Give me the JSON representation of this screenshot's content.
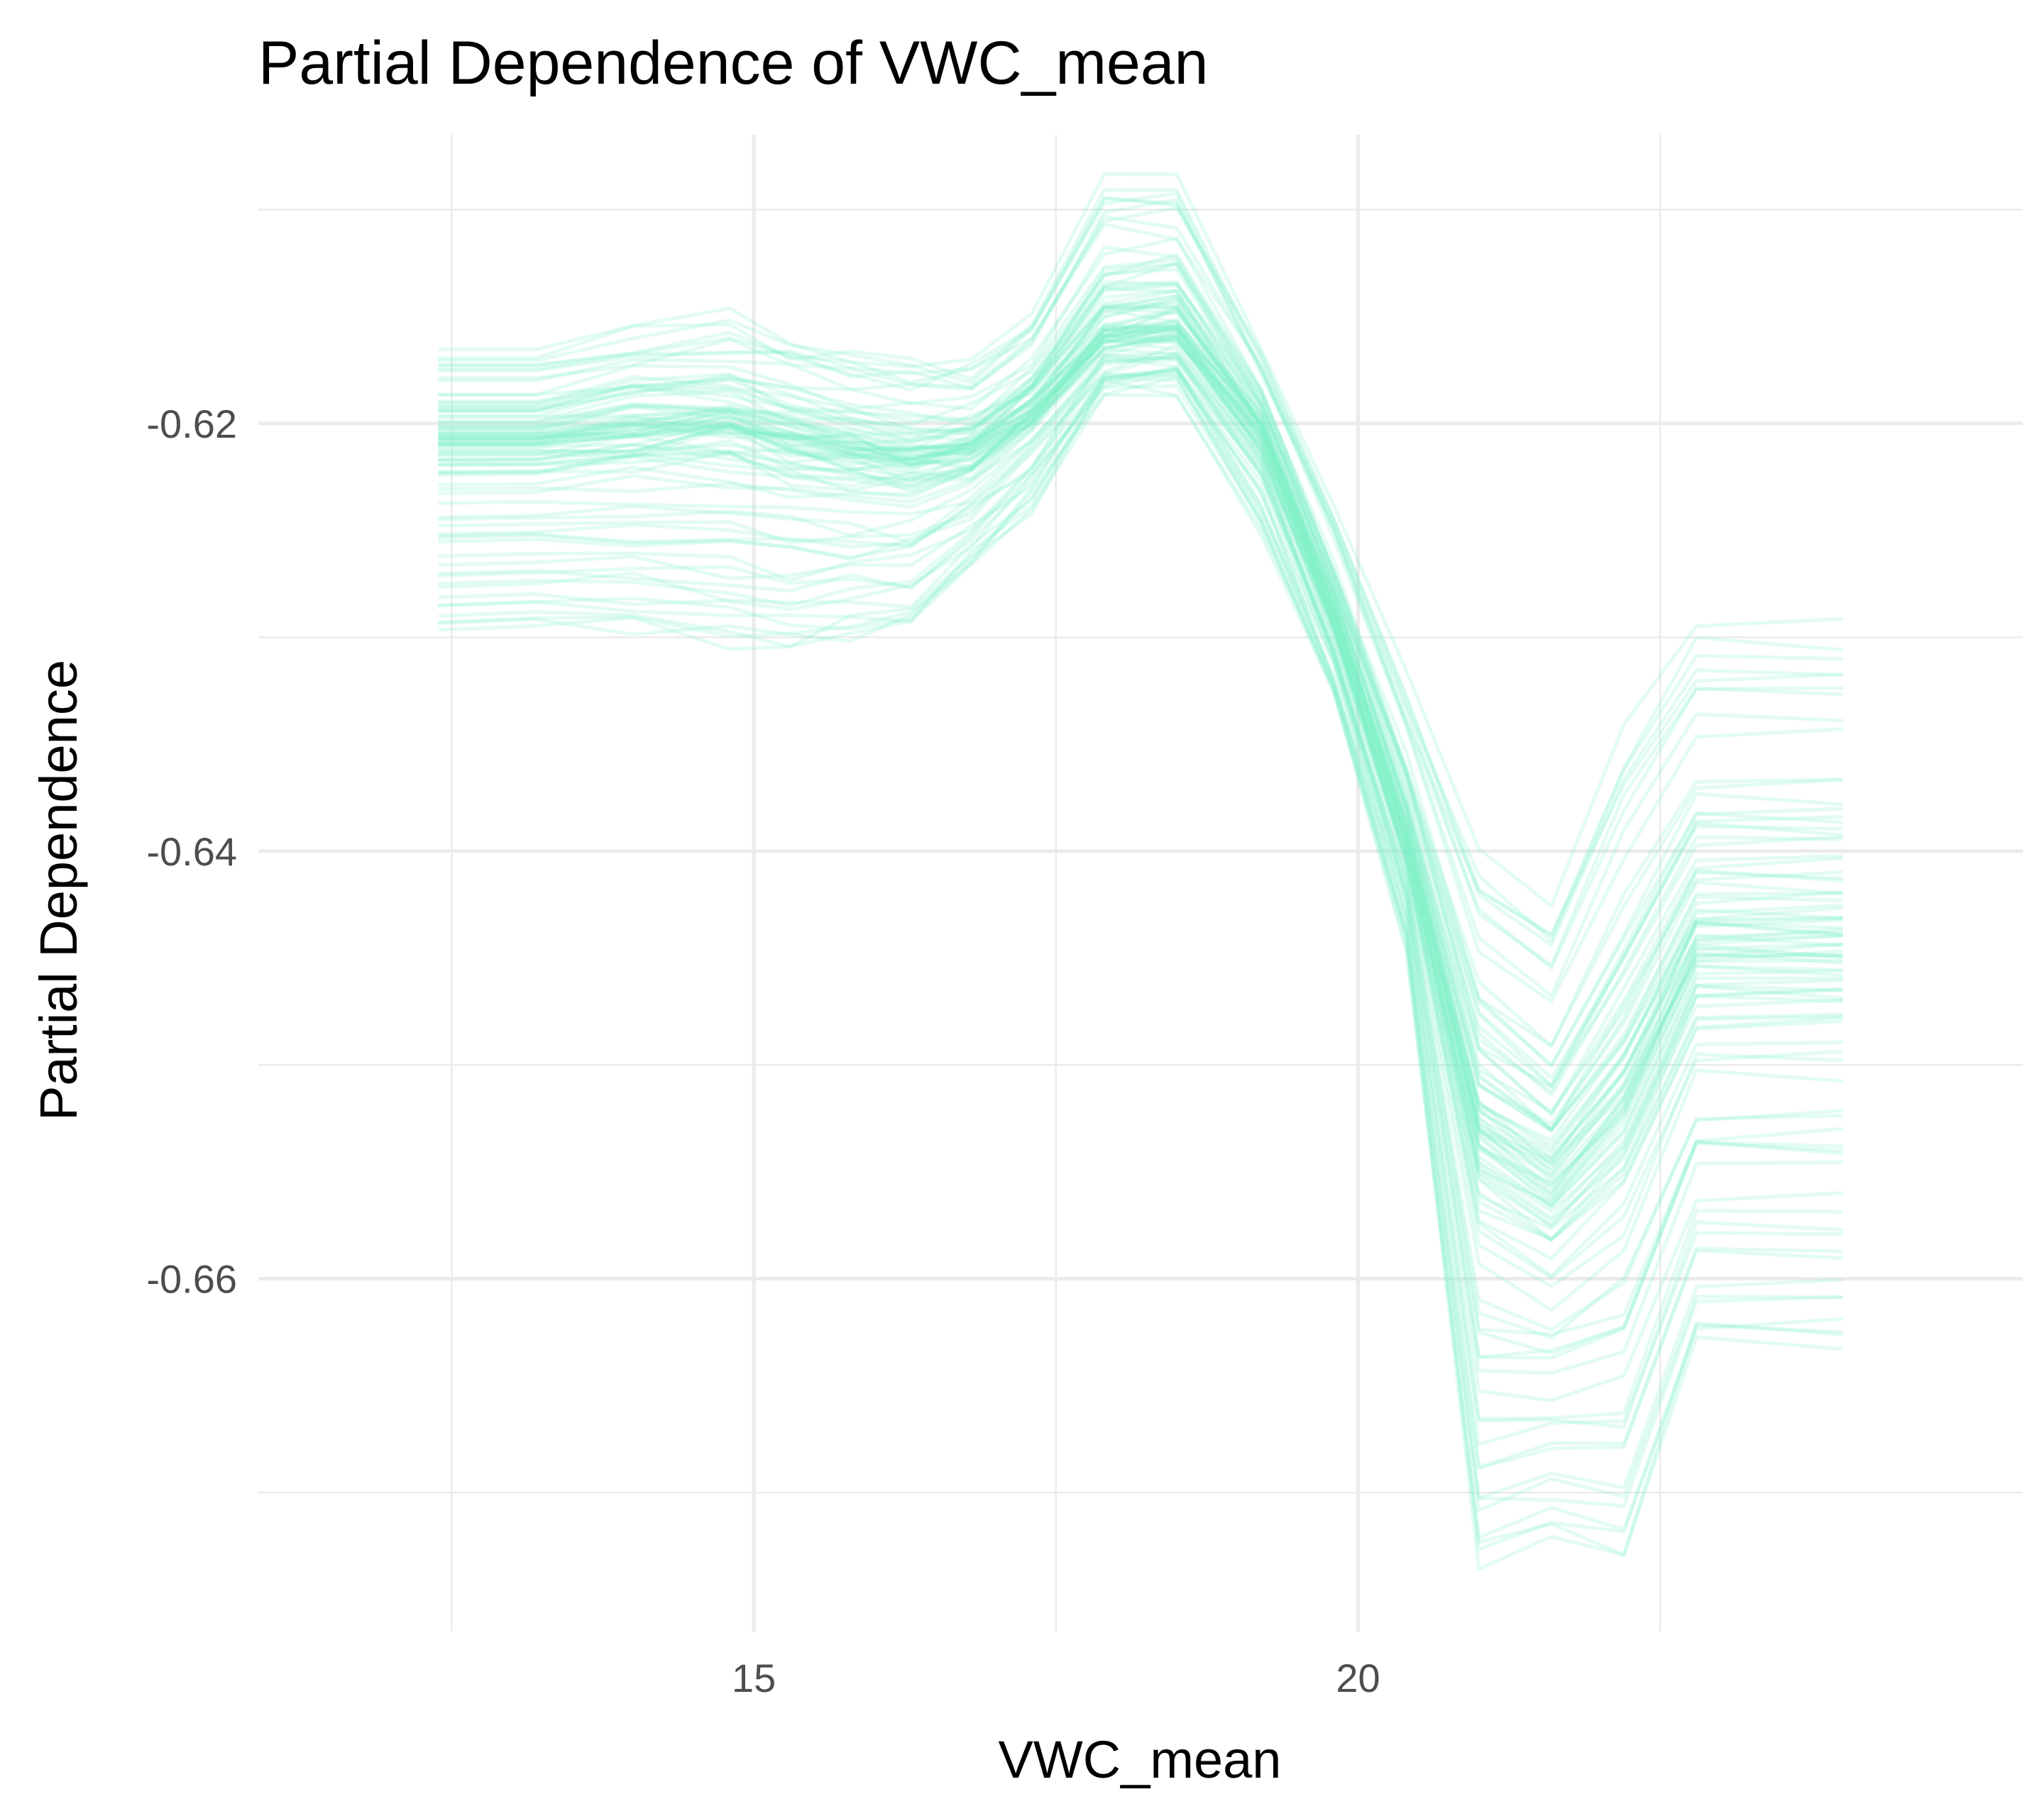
{
  "chart_data": {
    "type": "line",
    "title": "Partial Dependence of VWC_mean",
    "xlabel": "VWC_mean",
    "ylabel": "Partial Dependence",
    "x_ticks": [
      15,
      20
    ],
    "x_tick_labels": [
      "15",
      "20"
    ],
    "x_minor_ticks": [
      12.5,
      17.5,
      22.5
    ],
    "y_ticks": [
      -0.66,
      -0.64,
      -0.62
    ],
    "y_tick_labels": [
      "-0.66",
      "-0.64",
      "-0.62"
    ],
    "y_minor_ticks": [
      -0.67,
      -0.65,
      -0.63,
      -0.61
    ],
    "xlim": [
      10.9,
      25.5
    ],
    "ylim": [
      -0.6765,
      -0.6065
    ],
    "grid": true,
    "legend": "none",
    "line_color": "#7FF0C8",
    "line_opacity": 0.22,
    "x": [
      12.4,
      13.2,
      14.0,
      14.8,
      15.3,
      15.8,
      16.3,
      16.8,
      17.3,
      17.9,
      18.5,
      19.2,
      19.8,
      20.4,
      21.0,
      21.6,
      22.2,
      22.8,
      24.0
    ],
    "series_note_count": 90,
    "typical_curve": [
      -0.621,
      -0.621,
      -0.6205,
      -0.6203,
      -0.621,
      -0.6215,
      -0.622,
      -0.6215,
      -0.6195,
      -0.616,
      -0.6155,
      -0.6205,
      -0.629,
      -0.6395,
      -0.6535,
      -0.656,
      -0.652,
      -0.645,
      -0.645
    ],
    "envelope_low": [
      -0.63,
      -0.6298,
      -0.63,
      -0.6305,
      -0.631,
      -0.6305,
      -0.63,
      -0.627,
      -0.624,
      -0.6185,
      -0.6185,
      -0.625,
      -0.633,
      -0.6445,
      -0.674,
      -0.6725,
      -0.674,
      -0.664,
      -0.664
    ],
    "envelope_high": [
      -0.6165,
      -0.6165,
      -0.6155,
      -0.615,
      -0.616,
      -0.6165,
      -0.617,
      -0.617,
      -0.615,
      -0.6085,
      -0.6085,
      -0.6165,
      -0.624,
      -0.632,
      -0.64,
      -0.642,
      -0.634,
      -0.629,
      -0.629
    ]
  }
}
